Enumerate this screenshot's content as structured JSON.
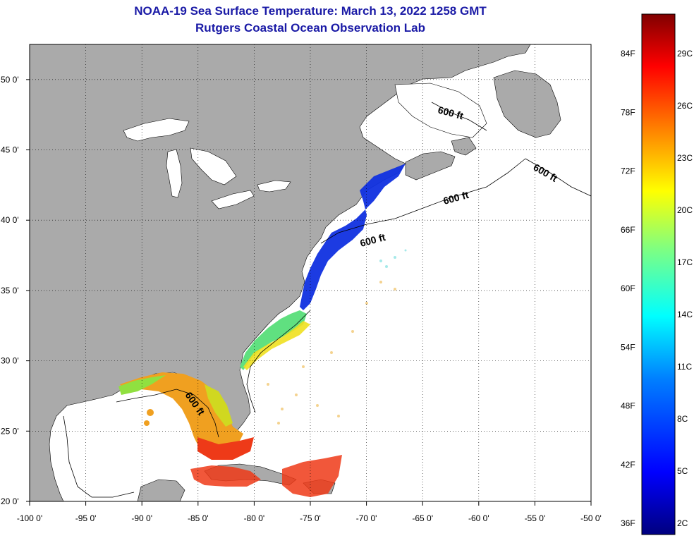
{
  "header": {
    "title": "NOAA-19 Sea Surface Temperature:  March 13, 2022 1258 GMT",
    "subtitle": "Rutgers Coastal Ocean Observation Lab"
  },
  "axes": {
    "x_ticks": [
      "-100 0'",
      "-95 0'",
      "-90 0'",
      "-85 0'",
      "-80 0'",
      "-75 0'",
      "-70 0'",
      "-65 0'",
      "-60 0'",
      "-55 0'",
      "-50 0'"
    ],
    "x_values": [
      -100,
      -95,
      -90,
      -85,
      -80,
      -75,
      -70,
      -65,
      -60,
      -55,
      -50
    ],
    "y_ticks": [
      "50 0'",
      "45 0'",
      "40 0'",
      "35 0'",
      "30 0'",
      "25 0'",
      "20 0'"
    ],
    "y_values": [
      50,
      45,
      40,
      35,
      30,
      25,
      20
    ],
    "lon_range": [
      -100,
      -50
    ],
    "lat_range": [
      20,
      52.5
    ],
    "grid": "dotted"
  },
  "contours": {
    "label": "600 ft",
    "labels": [
      "600 ft",
      "600 ft",
      "600 ft",
      "600 ft",
      "600 ft"
    ]
  },
  "colorbar": {
    "fahrenheit": [
      "84F",
      "78F",
      "72F",
      "66F",
      "60F",
      "54F",
      "48F",
      "42F",
      "36F"
    ],
    "celsius": [
      "29C",
      "26C",
      "23C",
      "20C",
      "17C",
      "14C",
      "11C",
      "8C",
      "5C",
      "2C"
    ],
    "colors": [
      "#00008b",
      "#0000ff",
      "#0080ff",
      "#00ffff",
      "#80ff80",
      "#ffff00",
      "#ff8000",
      "#ff0000",
      "#800000"
    ]
  },
  "colors": {
    "land": "#aaaaaa",
    "ocean": "#ffffff",
    "title": "#1a1aa6"
  }
}
